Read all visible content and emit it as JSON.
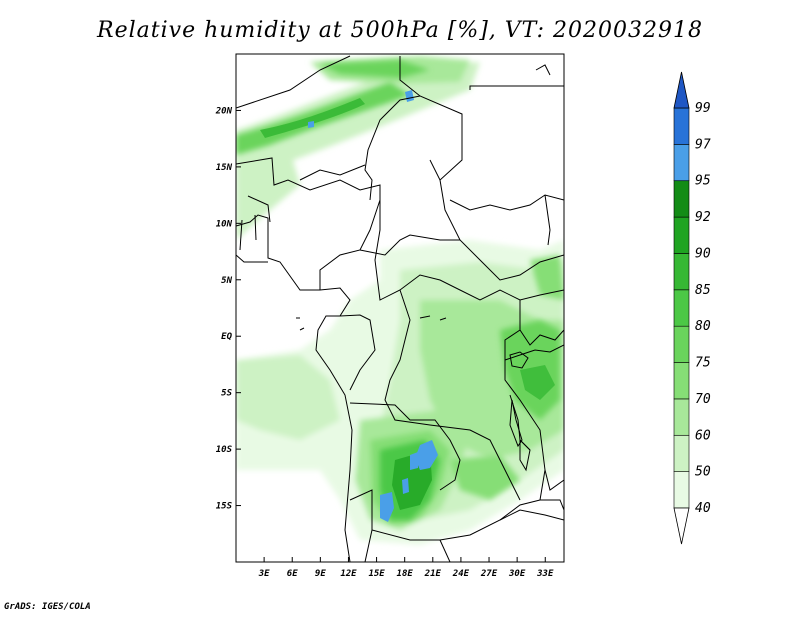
{
  "title": "Relative humidity at 500hPa [%], VT: 2020032918",
  "credit": "GrADS: IGES/COLA",
  "map": {
    "lon_range": [
      0,
      35
    ],
    "lat_range": [
      -20,
      25
    ],
    "lon_ticks": [
      {
        "value": 3,
        "label": "3E"
      },
      {
        "value": 6,
        "label": "6E"
      },
      {
        "value": 9,
        "label": "9E"
      },
      {
        "value": 12,
        "label": "12E"
      },
      {
        "value": 15,
        "label": "15E"
      },
      {
        "value": 18,
        "label": "18E"
      },
      {
        "value": 21,
        "label": "21E"
      },
      {
        "value": 24,
        "label": "24E"
      },
      {
        "value": 27,
        "label": "27E"
      },
      {
        "value": 30,
        "label": "30E"
      },
      {
        "value": 33,
        "label": "33E"
      }
    ],
    "lat_ticks": [
      {
        "value": 20,
        "label": "20N"
      },
      {
        "value": 15,
        "label": "15N"
      },
      {
        "value": 10,
        "label": "10N"
      },
      {
        "value": 5,
        "label": "5N"
      },
      {
        "value": 0,
        "label": "EQ"
      },
      {
        "value": -5,
        "label": "5S"
      },
      {
        "value": -10,
        "label": "10S"
      },
      {
        "value": -15,
        "label": "15S"
      }
    ]
  },
  "colorbar": {
    "levels": [
      "40",
      "50",
      "60",
      "70",
      "75",
      "80",
      "85",
      "90",
      "92",
      "95",
      "97",
      "99"
    ],
    "colors": [
      "#e8fae4",
      "#cdf2c4",
      "#a8e89a",
      "#86de76",
      "#6ad45c",
      "#4cc846",
      "#36b834",
      "#1fa422",
      "#138c16",
      "#4a9fe8",
      "#2873d8",
      "#1f57c4"
    ],
    "top_arrow_color": "#1f57c4",
    "bottom_arrow_color": "#ffffff"
  }
}
